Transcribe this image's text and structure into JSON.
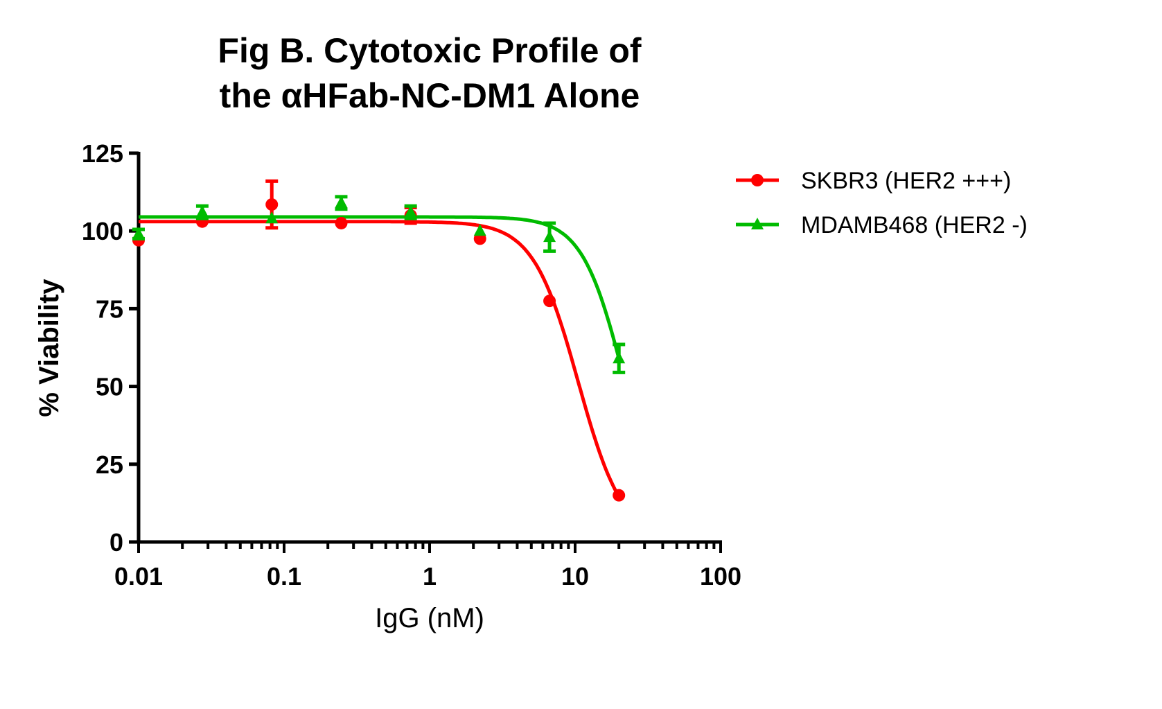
{
  "chart_data": {
    "type": "scatter",
    "title": [
      "Fig B. Cytotoxic Profile of",
      "the αHFab-NC-DM1 Alone"
    ],
    "xlabel": "IgG (nM)",
    "ylabel": "% Viability",
    "xscale": "log",
    "xlim": [
      0.01,
      100
    ],
    "ylim": [
      0,
      125
    ],
    "xticks": [
      0.01,
      0.1,
      1,
      10,
      100
    ],
    "xtick_labels": [
      "0.01",
      "0.1",
      "1",
      "10",
      "100"
    ],
    "yticks": [
      0,
      25,
      50,
      75,
      100,
      125
    ],
    "ytick_labels": [
      "0",
      "25",
      "50",
      "75",
      "100",
      "125"
    ],
    "legend_position": "top-right",
    "series": [
      {
        "name": "SKBR3 (HER2 +++)",
        "color": "#ff0000",
        "marker": "circle",
        "x": [
          0.01,
          0.0274,
          0.0823,
          0.247,
          0.741,
          2.22,
          6.67,
          20
        ],
        "y": [
          97,
          103,
          108.5,
          102.5,
          105,
          97.5,
          77.5,
          15
        ],
        "err": [
          0,
          0,
          7.5,
          0,
          2.5,
          0,
          0,
          0
        ],
        "fit": {
          "top": 103,
          "bottom": 0,
          "ic50": 10.5,
          "hill": 2.8
        }
      },
      {
        "name": "MDAMB468 (HER2 -)",
        "color": "#00bb00",
        "marker": "triangle",
        "x": [
          0.01,
          0.0274,
          0.0823,
          0.247,
          0.741,
          2.22,
          6.67,
          20
        ],
        "y": [
          99,
          106,
          104,
          109,
          106,
          100,
          98,
          59
        ],
        "err": [
          1.5,
          2,
          0,
          2,
          2,
          0,
          4.5,
          4.5
        ],
        "fit": {
          "top": 104.5,
          "bottom": 0,
          "ic50": 21.8,
          "hill": 3
        }
      }
    ]
  }
}
